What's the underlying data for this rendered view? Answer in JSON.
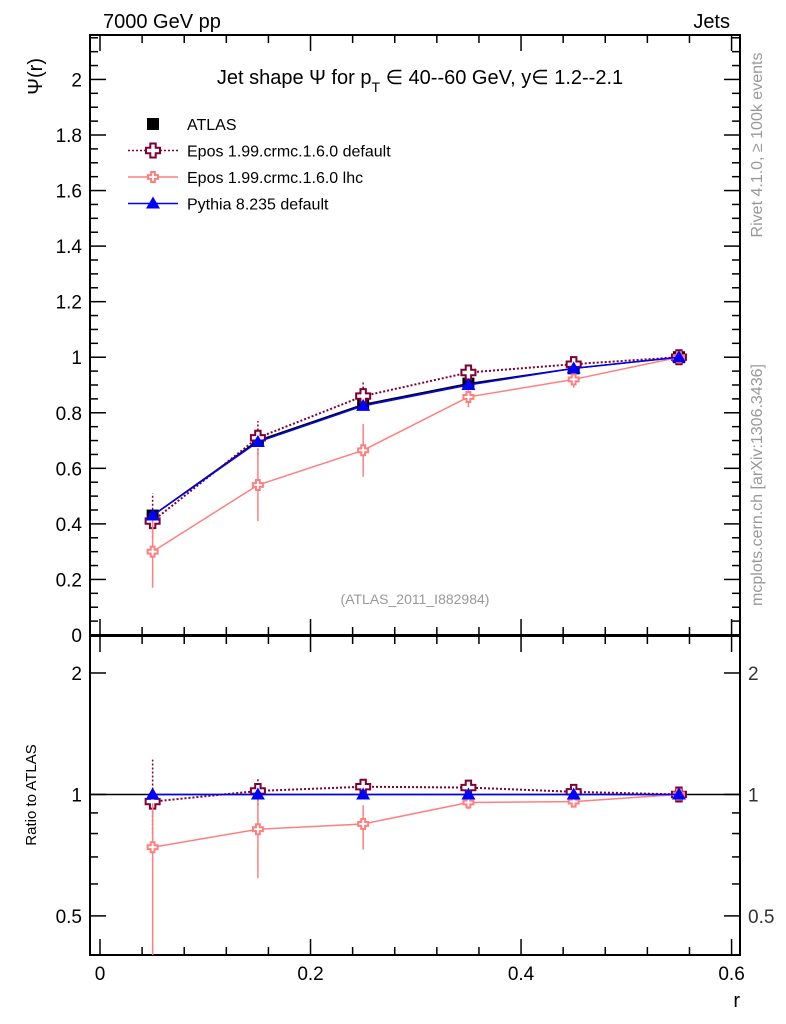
{
  "header": {
    "left": "7000 GeV pp",
    "right": "Jets"
  },
  "side": {
    "rivet": "Rivet 4.1.0, ≥ 100k events",
    "mcplots": "mcplots.cern.ch [arXiv:1306.3436]"
  },
  "chart_data": [
    {
      "type": "line",
      "title": "Jet shape Ψ for p_T ∈ 40--60 GeV, y∈ 1.2--2.1",
      "title_main": "Jet shape Ψ for p",
      "title_sub": "T",
      "title_rest": " ∈ 40--60 GeV, y∈ 1.2--2.1",
      "ylabel": "Ψ(r)",
      "xlabel": "r",
      "annotation": "(ATLAS_2011_I882984)",
      "xlim": [
        -0.0095,
        0.608
      ],
      "ylim": [
        0,
        2.16
      ],
      "legend_position": "top-left",
      "yticks": [
        0,
        0.2,
        0.4,
        0.6,
        0.8,
        1,
        1.2,
        1.4,
        1.6,
        1.8,
        2
      ],
      "ytick_labels": [
        "0",
        "0.2",
        "0.4",
        "0.6",
        "0.8",
        "1",
        "1.2",
        "1.4",
        "1.6",
        "1.8",
        "2"
      ],
      "x": [
        0.05,
        0.15,
        0.25,
        0.35,
        0.45,
        0.55
      ],
      "series": [
        {
          "name": "ATLAS",
          "color": "#000000",
          "marker": "square",
          "values": [
            0.43,
            0.7,
            0.83,
            0.905,
            0.96,
            1.0
          ],
          "err_lo": [
            0.43,
            0.7,
            0.83,
            0.905,
            0.96,
            1.0
          ],
          "err_hi": [
            0.43,
            0.7,
            0.83,
            0.905,
            0.96,
            1.0
          ]
        },
        {
          "name": "Epos 1.99.crmc.1.6.0 default",
          "color": "#800033",
          "marker": "open-cross",
          "dash": "2,2",
          "values": [
            0.41,
            0.71,
            0.86,
            0.945,
            0.975,
            1.0
          ],
          "err_lo": [
            0.35,
            0.65,
            0.83,
            0.93,
            0.965,
            0.995
          ],
          "err_hi": [
            0.51,
            0.77,
            0.91,
            0.96,
            0.985,
            1.005
          ]
        },
        {
          "name": "Epos 1.99.crmc.1.6.0 lhc",
          "color": "#ff7f7f",
          "marker": "open-cross-small",
          "values": [
            0.3,
            0.54,
            0.665,
            0.857,
            0.92,
            1.0
          ],
          "err_lo": [
            0.17,
            0.41,
            0.57,
            0.82,
            0.89,
            0.995
          ],
          "err_hi": [
            0.43,
            0.67,
            0.76,
            0.89,
            0.95,
            1.005
          ]
        },
        {
          "name": "Pythia 8.235 default",
          "color": "#0000ff",
          "marker": "triangle",
          "values": [
            0.43,
            0.695,
            0.825,
            0.9,
            0.96,
            1.0
          ],
          "err_lo": [
            0.43,
            0.695,
            0.825,
            0.9,
            0.96,
            1.0
          ],
          "err_hi": [
            0.43,
            0.695,
            0.825,
            0.9,
            0.96,
            1.0
          ]
        }
      ]
    },
    {
      "type": "line",
      "ylabel": "Ratio to ATLAS",
      "xlabel": "r",
      "yscale": "log",
      "ylim": [
        0.4,
        2.47
      ],
      "xlim": [
        -0.0095,
        0.608
      ],
      "yticks": [
        0.5,
        1,
        2
      ],
      "ytick_labels": [
        "0.5",
        "1",
        "2"
      ],
      "xticks": [
        0,
        0.2,
        0.4,
        0.6
      ],
      "xtick_labels": [
        "0",
        "0.2",
        "0.4",
        "0.6"
      ],
      "x": [
        0.05,
        0.15,
        0.25,
        0.35,
        0.45,
        0.55
      ],
      "series": [
        {
          "name": "Epos 1.99.crmc.1.6.0 default",
          "color": "#800033",
          "marker": "open-cross",
          "dash": "2,2",
          "values": [
            0.96,
            1.02,
            1.045,
            1.04,
            1.015,
            1.0
          ],
          "err_lo": [
            0.8,
            0.94,
            1.0,
            1.02,
            1.005,
            0.995
          ],
          "err_hi": [
            1.22,
            1.1,
            1.09,
            1.06,
            1.025,
            1.005
          ]
        },
        {
          "name": "Epos 1.99.crmc.1.6.0 lhc",
          "color": "#ff7f7f",
          "marker": "open-cross-small",
          "values": [
            0.74,
            0.82,
            0.845,
            0.955,
            0.96,
            1.0
          ],
          "err_lo": [
            0.4,
            0.62,
            0.73,
            0.92,
            0.94,
            0.995
          ],
          "err_hi": [
            0.95,
            1.0,
            0.94,
            0.99,
            0.98,
            1.005
          ]
        },
        {
          "name": "Pythia 8.235 default",
          "color": "#0000ff",
          "marker": "triangle",
          "values": [
            1.0,
            1.0,
            1.0,
            1.0,
            1.0,
            1.0
          ],
          "err_lo": [
            1,
            1,
            1,
            1,
            1,
            1
          ],
          "err_hi": [
            1,
            1,
            1,
            1,
            1,
            1
          ]
        }
      ]
    }
  ]
}
